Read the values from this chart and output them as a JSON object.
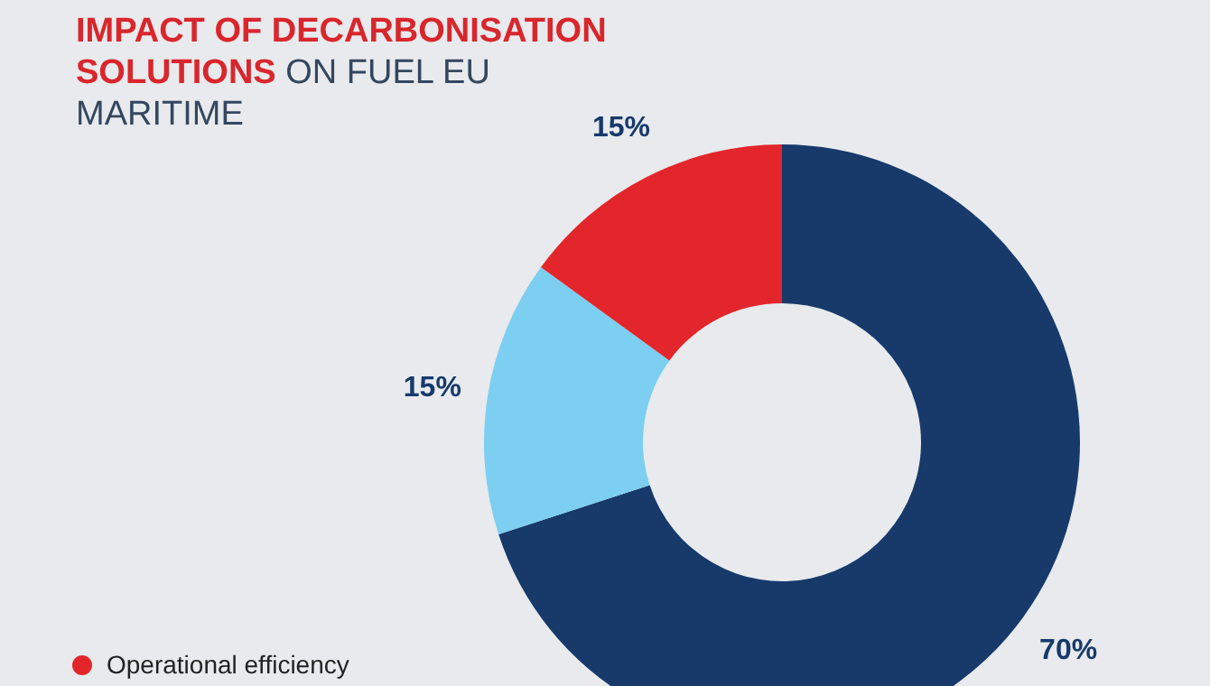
{
  "chart_data": {
    "type": "donut",
    "title": "IMPACT OF DECARBONISATION SOLUTIONS",
    "subtitle": "ON FUEL EU MARITIME",
    "categories": [
      null,
      null,
      "Operational efficiency"
    ],
    "values": [
      70,
      15,
      15
    ],
    "colors": [
      "#173a6b",
      "#7ccff0",
      "#e3262b"
    ],
    "value_labels": [
      "70%",
      "15%",
      "15%"
    ],
    "legend": "bottom left"
  }
}
